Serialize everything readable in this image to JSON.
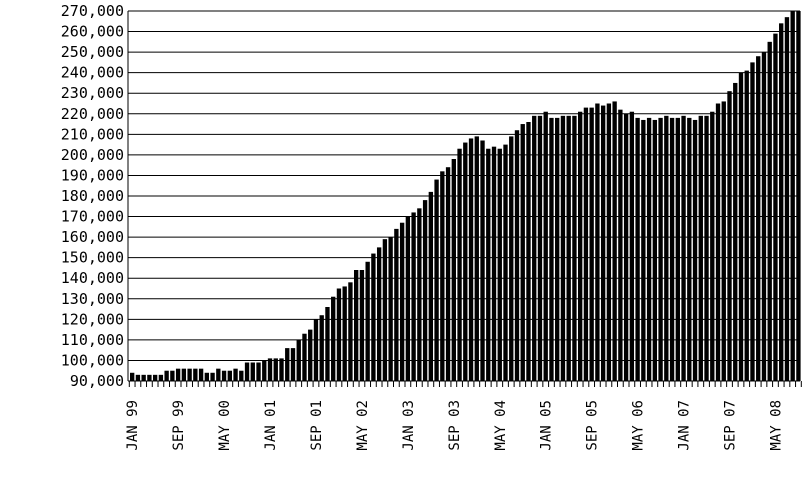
{
  "chart_data": {
    "type": "bar",
    "title": "",
    "xlabel": "",
    "ylabel": "",
    "ylim": [
      90000,
      270000
    ],
    "grid": "horizontal",
    "y_ticks": [
      "90,000",
      "100,000",
      "110,000",
      "120,000",
      "130,000",
      "140,000",
      "150,000",
      "160,000",
      "170,000",
      "180,000",
      "190,000",
      "200,000",
      "210,000",
      "220,000",
      "230,000",
      "240,000",
      "250,000",
      "260,000",
      "270,000"
    ],
    "x_tick_labels": [
      "JAN 99",
      "SEP 99",
      "MAY 00",
      "JAN 01",
      "SEP 01",
      "MAY 02",
      "JAN 03",
      "SEP 03",
      "MAY 04",
      "JAN 05",
      "SEP 05",
      "MAY 06",
      "JAN 07",
      "SEP 07",
      "MAY 08"
    ],
    "x_start": "JAN 99",
    "x_interval": "monthly",
    "values": [
      94000,
      93000,
      93000,
      93000,
      93000,
      93000,
      95000,
      95000,
      96000,
      96000,
      96000,
      96000,
      96000,
      94000,
      94000,
      96000,
      95000,
      95000,
      96000,
      95000,
      99000,
      99000,
      99000,
      100000,
      101000,
      101000,
      101000,
      106000,
      106000,
      110000,
      113000,
      115000,
      120000,
      122000,
      126000,
      131000,
      135000,
      136000,
      138000,
      144000,
      144000,
      148000,
      152000,
      155000,
      159000,
      160000,
      164000,
      167000,
      170000,
      172000,
      174000,
      178000,
      182000,
      188000,
      192000,
      194000,
      198000,
      203000,
      206000,
      208000,
      209000,
      207000,
      203000,
      204000,
      203000,
      205000,
      209000,
      212000,
      215000,
      216000,
      219000,
      219000,
      221000,
      218000,
      218000,
      219000,
      219000,
      219000,
      221000,
      223000,
      223000,
      225000,
      224000,
      225000,
      226000,
      222000,
      220000,
      221000,
      218000,
      217000,
      218000,
      217000,
      218000,
      219000,
      218000,
      218000,
      219000,
      218000,
      217000,
      219000,
      219000,
      221000,
      225000,
      226000,
      231000,
      235000,
      240000,
      241000,
      245000,
      248000,
      250000,
      255000,
      259000,
      264000,
      267000,
      270000,
      270000
    ]
  }
}
